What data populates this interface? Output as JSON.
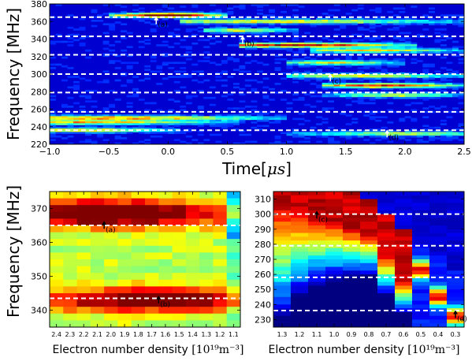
{
  "chart_data": [
    {
      "type": "heatmap",
      "xlabel": {
        "text": "Time",
        "unit_math": "μs"
      },
      "ylabel": "Frequency [MHz]",
      "xlim": [
        -1.0,
        2.5
      ],
      "ylim": [
        220,
        380
      ],
      "x_ticks": [
        "−1.0",
        "−0.5",
        "0.0",
        "0.5",
        "1.0",
        "1.5",
        "2.0",
        "2.5"
      ],
      "x_tick_values": [
        -1.0,
        -0.5,
        0.0,
        0.5,
        1.0,
        1.5,
        2.0,
        2.5
      ],
      "y_ticks": [
        "220",
        "240",
        "260",
        "280",
        "300",
        "320",
        "340",
        "360",
        "380"
      ],
      "y_tick_values": [
        220,
        240,
        260,
        280,
        300,
        320,
        340,
        360,
        380
      ],
      "dashed_lines_y": [
        365,
        343,
        322,
        300,
        279,
        257,
        236
      ],
      "colormap": "jet",
      "bands": [
        {
          "f": 367,
          "t_start": -0.5,
          "t_end": 0.5,
          "t_peak": 0.0,
          "intensity": 1.0
        },
        {
          "f": 360,
          "t_start": 0.1,
          "t_end": 2.5,
          "t_peak": 0.9,
          "intensity": 0.55
        },
        {
          "f": 350,
          "t_start": 0.3,
          "t_end": 1.1,
          "t_peak": 0.6,
          "intensity": 0.5
        },
        {
          "f": 333,
          "t_start": 0.6,
          "t_end": 2.1,
          "t_peak": 1.1,
          "intensity": 0.85
        },
        {
          "f": 327,
          "t_start": 1.2,
          "t_end": 2.5,
          "t_peak": 1.7,
          "intensity": 0.55
        },
        {
          "f": 313,
          "t_start": 1.0,
          "t_end": 2.0,
          "t_peak": 1.4,
          "intensity": 0.5
        },
        {
          "f": 298,
          "t_start": 1.0,
          "t_end": 2.5,
          "t_peak": 1.6,
          "intensity": 0.55
        },
        {
          "f": 287,
          "t_start": 1.3,
          "t_end": 2.5,
          "t_peak": 1.8,
          "intensity": 0.8
        },
        {
          "f": 276,
          "t_start": 1.3,
          "t_end": 2.5,
          "t_peak": 1.9,
          "intensity": 0.5
        },
        {
          "f": 250,
          "t_start": -1.0,
          "t_end": 1.0,
          "t_peak": -0.5,
          "intensity": 0.65
        },
        {
          "f": 245,
          "t_start": -1.0,
          "t_end": 0.6,
          "t_peak": -0.8,
          "intensity": 0.6
        },
        {
          "f": 236,
          "t_start": -1.0,
          "t_end": 0.1,
          "t_peak": -0.7,
          "intensity": 0.55
        },
        {
          "f": 232,
          "t_start": 1.0,
          "t_end": 2.5,
          "t_peak": 2.0,
          "intensity": 0.45
        }
      ],
      "annotations": [
        {
          "label": "(a)",
          "x": -0.1,
          "y": 355,
          "color": "white"
        },
        {
          "label": "(b)",
          "x": 0.63,
          "y": 333,
          "color": "white"
        },
        {
          "label": "(c)",
          "x": 1.37,
          "y": 290,
          "color": "white"
        },
        {
          "label": "(d)",
          "x": 1.85,
          "y": 226,
          "color": "white"
        }
      ]
    },
    {
      "type": "heatmap",
      "xlabel": {
        "text": "Electron number density",
        "unit_math": "[10¹⁹m⁻³]"
      },
      "ylabel": "Frequency [MHz]",
      "ylim": [
        335,
        375
      ],
      "x_categories": [
        "2.4",
        "2.3",
        "2.2",
        "2.1",
        "2.0",
        "1.9",
        "1.8",
        "1.7",
        "1.6",
        "1.5",
        "1.4",
        "1.3",
        "1.2",
        "1.1"
      ],
      "y_ticks": [
        "340",
        "350",
        "360",
        "370"
      ],
      "y_tick_values": [
        340,
        350,
        360,
        370
      ],
      "dashed_lines_y": [
        365,
        343.5
      ],
      "colormap": "jet",
      "bands": [
        {
          "f": 368.5,
          "width": 4,
          "peak_x": 4,
          "intensity": 0.95
        },
        {
          "f": 343,
          "width": 3.5,
          "peak_x": 7,
          "intensity": 0.9
        }
      ],
      "annotations": [
        {
          "label": "(a)",
          "x": "2.0",
          "y": 364,
          "color": "black"
        },
        {
          "label": "(b)",
          "x": "1.6",
          "y": 342,
          "color": "black"
        }
      ]
    },
    {
      "type": "heatmap",
      "xlabel": {
        "text": "Electron number density",
        "unit_math": "[10¹⁹m⁻³]"
      },
      "ylim": [
        225,
        315
      ],
      "x_categories": [
        "1.3",
        "1.2",
        "1.1",
        "1.0",
        "0.9",
        "0.8",
        "0.7",
        "0.6",
        "0.5",
        "0.4",
        "0.3"
      ],
      "y_ticks": [
        "230",
        "240",
        "250",
        "260",
        "270",
        "280",
        "290",
        "300",
        "310"
      ],
      "y_tick_values": [
        230,
        240,
        250,
        260,
        270,
        280,
        290,
        300,
        310
      ],
      "dashed_lines_y": [
        300,
        279,
        258,
        236
      ],
      "colormap": "jet",
      "annotations": [
        {
          "label": "(c)",
          "x": "1.1",
          "y": 297,
          "color": "black"
        },
        {
          "label": "(d)",
          "x": "0.3",
          "y": 231,
          "color": "black"
        }
      ]
    }
  ]
}
